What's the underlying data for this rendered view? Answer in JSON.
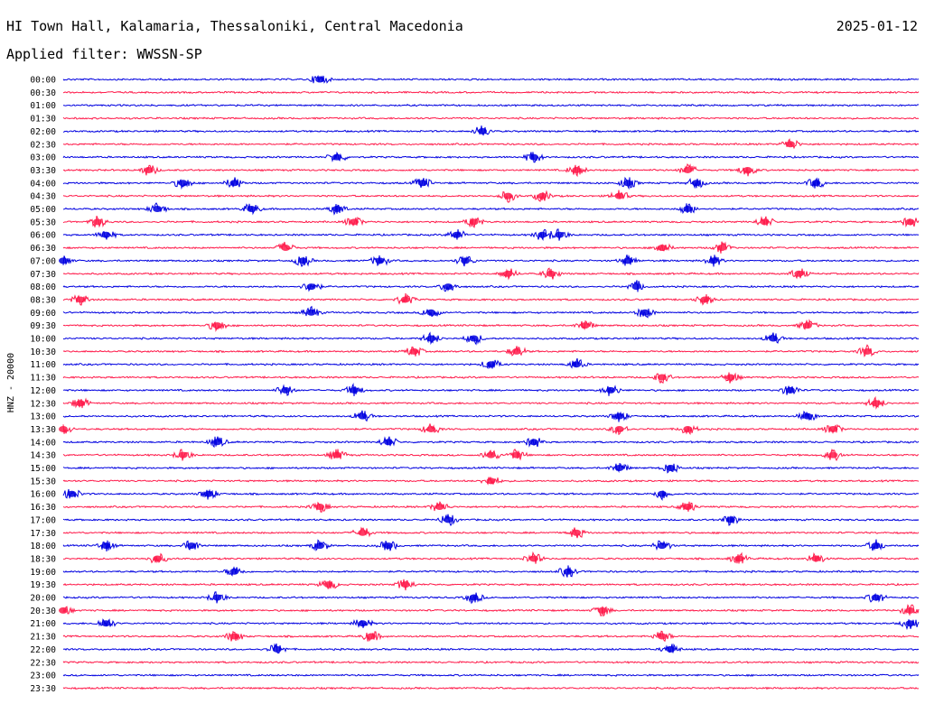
{
  "header": {
    "title": "HI Town Hall, Kalamaria, Thessaloniki, Central Macedonia",
    "date": "2025-01-12",
    "filter_label": "Applied filter: WWSSN-SP"
  },
  "colors": {
    "trace_even": "#0000e0",
    "trace_odd": "#ff1a4a",
    "background": "#ffffff",
    "text": "#000000"
  },
  "chart_data": {
    "type": "line",
    "title": "HI Town Hall, Kalamaria, Thessaloniki, Central Macedonia",
    "ylabel": "HNZ - 20000",
    "xlabel": "",
    "grid": false,
    "legend": "none",
    "series": [
      {
        "label": "00:00",
        "bursts": [
          0.3
        ]
      },
      {
        "label": "00:30",
        "bursts": []
      },
      {
        "label": "01:00",
        "bursts": []
      },
      {
        "label": "01:30",
        "bursts": []
      },
      {
        "label": "02:00",
        "bursts": [
          0.49
        ]
      },
      {
        "label": "02:30",
        "bursts": [
          0.85
        ]
      },
      {
        "label": "03:00",
        "bursts": [
          0.32,
          0.55
        ]
      },
      {
        "label": "03:30",
        "bursts": [
          0.1,
          0.6,
          0.73,
          0.8
        ]
      },
      {
        "label": "04:00",
        "bursts": [
          0.14,
          0.2,
          0.42,
          0.66,
          0.74,
          0.88
        ]
      },
      {
        "label": "04:30",
        "bursts": [
          0.52,
          0.56,
          0.65
        ]
      },
      {
        "label": "05:00",
        "bursts": [
          0.11,
          0.22,
          0.32,
          0.73
        ]
      },
      {
        "label": "05:30",
        "bursts": [
          0.04,
          0.34,
          0.48,
          0.82,
          0.99
        ]
      },
      {
        "label": "06:00",
        "bursts": [
          0.05,
          0.46,
          0.56,
          0.58
        ]
      },
      {
        "label": "06:30",
        "bursts": [
          0.26,
          0.7,
          0.77
        ]
      },
      {
        "label": "07:00",
        "bursts": [
          0.0,
          0.28,
          0.37,
          0.47,
          0.66,
          0.76
        ]
      },
      {
        "label": "07:30",
        "bursts": [
          0.52,
          0.57,
          0.86
        ]
      },
      {
        "label": "08:00",
        "bursts": [
          0.29,
          0.45,
          0.67
        ]
      },
      {
        "label": "08:30",
        "bursts": [
          0.02,
          0.4,
          0.75
        ]
      },
      {
        "label": "09:00",
        "bursts": [
          0.29,
          0.43,
          0.68
        ]
      },
      {
        "label": "09:30",
        "bursts": [
          0.18,
          0.61,
          0.87
        ]
      },
      {
        "label": "10:00",
        "bursts": [
          0.43,
          0.48,
          0.83
        ]
      },
      {
        "label": "10:30",
        "bursts": [
          0.41,
          0.53,
          0.94
        ]
      },
      {
        "label": "11:00",
        "bursts": [
          0.5,
          0.6
        ]
      },
      {
        "label": "11:30",
        "bursts": [
          0.7,
          0.78
        ]
      },
      {
        "label": "12:00",
        "bursts": [
          0.26,
          0.34,
          0.64,
          0.85
        ]
      },
      {
        "label": "12:30",
        "bursts": [
          0.02,
          0.95
        ]
      },
      {
        "label": "13:00",
        "bursts": [
          0.35,
          0.65,
          0.87
        ]
      },
      {
        "label": "13:30",
        "bursts": [
          0.0,
          0.43,
          0.65,
          0.73,
          0.9
        ]
      },
      {
        "label": "14:00",
        "bursts": [
          0.18,
          0.38,
          0.55
        ]
      },
      {
        "label": "14:30",
        "bursts": [
          0.14,
          0.32,
          0.5,
          0.53,
          0.9
        ]
      },
      {
        "label": "15:00",
        "bursts": [
          0.65,
          0.71
        ]
      },
      {
        "label": "15:30",
        "bursts": [
          0.5
        ]
      },
      {
        "label": "16:00",
        "bursts": [
          0.01,
          0.17,
          0.7
        ]
      },
      {
        "label": "16:30",
        "bursts": [
          0.3,
          0.44,
          0.73
        ]
      },
      {
        "label": "17:00",
        "bursts": [
          0.45,
          0.78
        ]
      },
      {
        "label": "17:30",
        "bursts": [
          0.35,
          0.6
        ]
      },
      {
        "label": "18:00",
        "bursts": [
          0.05,
          0.15,
          0.3,
          0.38,
          0.7,
          0.95
        ]
      },
      {
        "label": "18:30",
        "bursts": [
          0.11,
          0.55,
          0.79,
          0.88
        ]
      },
      {
        "label": "19:00",
        "bursts": [
          0.2,
          0.59
        ]
      },
      {
        "label": "19:30",
        "bursts": [
          0.31,
          0.4
        ]
      },
      {
        "label": "20:00",
        "bursts": [
          0.18,
          0.48,
          0.95
        ]
      },
      {
        "label": "20:30",
        "bursts": [
          0.0,
          0.63,
          0.99
        ]
      },
      {
        "label": "21:00",
        "bursts": [
          0.05,
          0.35,
          0.99
        ]
      },
      {
        "label": "21:30",
        "bursts": [
          0.2,
          0.36,
          0.7
        ]
      },
      {
        "label": "22:00",
        "bursts": [
          0.25,
          0.71
        ]
      },
      {
        "label": "22:30",
        "bursts": []
      },
      {
        "label": "23:00",
        "bursts": []
      },
      {
        "label": "23:30",
        "bursts": []
      }
    ]
  }
}
